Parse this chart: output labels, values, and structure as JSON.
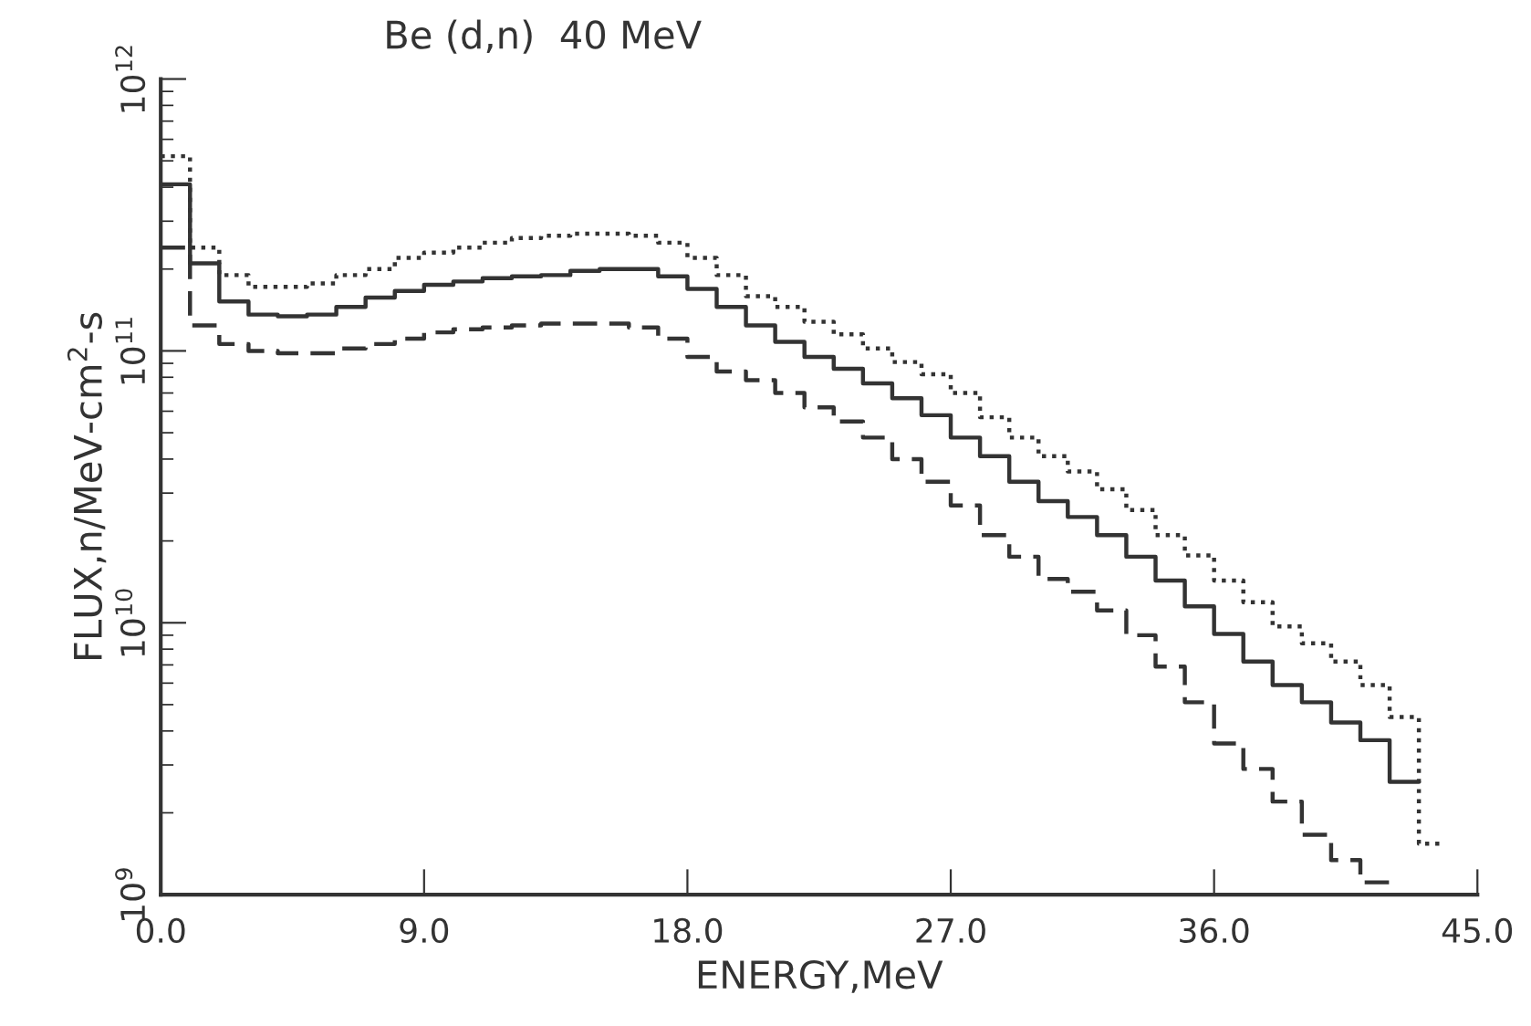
{
  "chart_data": {
    "type": "step",
    "title": "Be (d,n)  40 MeV",
    "xlabel": "ENERGY,MeV",
    "ylabel": "FLUX,n/MeV-cm$^{2}$-s",
    "log": "y",
    "xlim": [
      0,
      45
    ],
    "xticks": [
      {
        "value": 0,
        "label": "0.0"
      },
      {
        "value": 9,
        "label": "9.0"
      },
      {
        "value": 18,
        "label": "18.0"
      },
      {
        "value": 27,
        "label": "27.0"
      },
      {
        "value": 36,
        "label": "36.0"
      },
      {
        "value": 45,
        "label": "45.0"
      }
    ],
    "ylim": [
      1000000000.0,
      1000000000000.0
    ],
    "yticks": [
      {
        "value": 1000000000.0,
        "label": "10$^{9}$"
      },
      {
        "value": 10000000000.0,
        "label": "10$^{10}$"
      },
      {
        "value": 100000000000.0,
        "label": "10$^{11}$"
      },
      {
        "value": 1000000000000.0,
        "label": "10$^{12}$"
      }
    ],
    "grid": false,
    "marker": "none",
    "series": [
      {
        "color": "#333333",
        "line_style": "solid",
        "x": [
          0,
          1,
          2,
          3,
          4,
          5,
          6,
          7,
          8,
          9,
          10,
          11,
          12,
          13,
          14,
          15,
          16,
          17,
          18,
          19,
          20,
          21,
          22,
          23,
          24,
          25,
          26,
          27,
          28,
          29,
          30,
          31,
          32,
          33,
          34,
          35,
          36,
          37,
          38,
          39,
          40,
          41,
          42,
          43
        ],
        "values": [
          410000000000.0,
          210000000000.0,
          152000000000.0,
          136000000000.0,
          134000000000.0,
          136000000000.0,
          145000000000.0,
          157000000000.0,
          166000000000.0,
          175000000000.0,
          180000000000.0,
          185000000000.0,
          188000000000.0,
          190000000000.0,
          197000000000.0,
          200000000000.0,
          200000000000.0,
          188000000000.0,
          169000000000.0,
          145000000000.0,
          124000000000.0,
          108000000000.0,
          95000000000.0,
          86000000000.0,
          76000000000.0,
          67000000000.0,
          58000000000.0,
          48000000000.0,
          41000000000.0,
          33000000000.0,
          28000000000.0,
          24500000000.0,
          21000000000.0,
          17500000000.0,
          14300000000.0,
          11500000000.0,
          9100000000.0,
          7200000000.0,
          5900000000.0,
          5100000000.0,
          4300000000.0,
          3700000000.0,
          2600000000.0,
          2600000000.0
        ]
      },
      {
        "color": "#333333",
        "line_style": "dotted",
        "x": [
          0,
          1,
          2,
          3,
          4,
          5,
          6,
          7,
          8,
          9,
          10,
          11,
          12,
          13,
          14,
          15,
          16,
          17,
          18,
          19,
          20,
          21,
          22,
          23,
          24,
          25,
          26,
          27,
          28,
          29,
          30,
          31,
          32,
          33,
          34,
          35,
          36,
          37,
          38,
          39,
          40,
          41,
          42,
          43,
          43.7
        ],
        "values": [
          520000000000.0,
          240000000000.0,
          190000000000.0,
          172000000000.0,
          172000000000.0,
          177000000000.0,
          190000000000.0,
          200000000000.0,
          220000000000.0,
          230000000000.0,
          240000000000.0,
          250000000000.0,
          260000000000.0,
          265000000000.0,
          270000000000.0,
          270000000000.0,
          265000000000.0,
          250000000000.0,
          220000000000.0,
          190000000000.0,
          159000000000.0,
          145000000000.0,
          128000000000.0,
          115000000000.0,
          102000000000.0,
          91000000000.0,
          82000000000.0,
          70000000000.0,
          57000000000.0,
          48000000000.0,
          41000000000.0,
          36000000000.0,
          31000000000.0,
          26000000000.0,
          21000000000.0,
          17700000000.0,
          14300000000.0,
          11900000000.0,
          9700000000.0,
          8400000000.0,
          7200000000.0,
          5900000000.0,
          4500000000.0,
          1540000000.0,
          1540000000.0
        ]
      },
      {
        "color": "#333333",
        "line_style": "dashed",
        "x": [
          0,
          1,
          2,
          3,
          4,
          5,
          6,
          7,
          8,
          9,
          10,
          11,
          12,
          13,
          14,
          15,
          16,
          17,
          18,
          19,
          20,
          21,
          22,
          23,
          24,
          25,
          26,
          27,
          28,
          29,
          30,
          31,
          32,
          33,
          34,
          35,
          36,
          37,
          38,
          39,
          40,
          41,
          42
        ],
        "values": [
          240000000000.0,
          124000000000.0,
          106000000000.0,
          100000000000.0,
          98000000000.0,
          98000000000.0,
          102000000000.0,
          106000000000.0,
          111000000000.0,
          117000000000.0,
          120000000000.0,
          122000000000.0,
          124000000000.0,
          126000000000.0,
          126000000000.0,
          126000000000.0,
          122000000000.0,
          111000000000.0,
          95000000000.0,
          84000000000.0,
          78000000000.0,
          70000000000.0,
          62000000000.0,
          55000000000.0,
          48000000000.0,
          40000000000.0,
          33000000000.0,
          27000000000.0,
          21000000000.0,
          17500000000.0,
          14500000000.0,
          13000000000.0,
          11100000000.0,
          9000000000.0,
          6900000000.0,
          5100000000.0,
          3600000000.0,
          2900000000.0,
          2200000000.0,
          1660000000.0,
          1340000000.0,
          1110000000.0,
          1110000000.0
        ]
      }
    ]
  }
}
